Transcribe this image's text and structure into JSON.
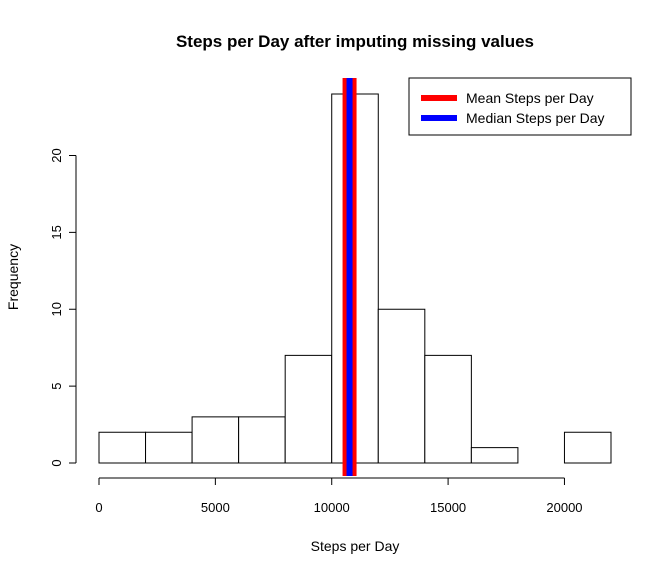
{
  "chart_data": {
    "type": "bar",
    "title": "Steps per Day after imputing missing values",
    "xlabel": "Steps per Day",
    "ylabel": "Frequency",
    "bins": [
      {
        "from": 0,
        "to": 2000,
        "count": 2
      },
      {
        "from": 2000,
        "to": 4000,
        "count": 2
      },
      {
        "from": 4000,
        "to": 6000,
        "count": 3
      },
      {
        "from": 6000,
        "to": 8000,
        "count": 3
      },
      {
        "from": 8000,
        "to": 10000,
        "count": 7
      },
      {
        "from": 10000,
        "to": 12000,
        "count": 24
      },
      {
        "from": 12000,
        "to": 14000,
        "count": 10
      },
      {
        "from": 14000,
        "to": 16000,
        "count": 7
      },
      {
        "from": 16000,
        "to": 18000,
        "count": 1
      },
      {
        "from": 18000,
        "to": 20000,
        "count": 0
      },
      {
        "from": 20000,
        "to": 22000,
        "count": 2
      }
    ],
    "xlim": [
      0,
      22000
    ],
    "ylim": [
      0,
      24
    ],
    "xticks": [
      0,
      5000,
      10000,
      15000,
      20000
    ],
    "yticks": [
      0,
      5,
      10,
      15,
      20
    ],
    "grid": false,
    "legend_position": "top-right",
    "reference_lines": [
      {
        "name": "Mean Steps per Day",
        "value": 10766,
        "color": "#ff0000"
      },
      {
        "name": "Median Steps per Day",
        "value": 10766,
        "color": "#0000ff"
      }
    ],
    "bar_fill": "#ffffff",
    "bar_stroke": "#000000"
  }
}
